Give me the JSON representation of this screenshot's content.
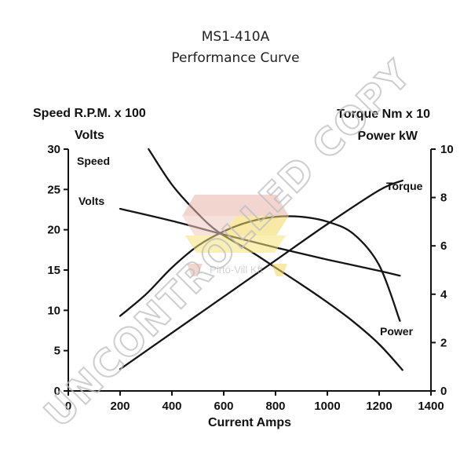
{
  "chart_data": {
    "type": "line",
    "title": "MS1-410A",
    "subtitle": "Performance Curve",
    "xlabel": "Current Amps",
    "ylabel_left_top": "Speed R.P.M. x 100",
    "ylabel_left_bottom": "Volts",
    "ylabel_right_top": "Torque Nm x 10",
    "ylabel_right_bottom": "Power kW",
    "xlim": [
      0,
      1400
    ],
    "ylim_left": [
      0,
      30
    ],
    "ylim_right": [
      0,
      10
    ],
    "x_ticks": [
      "0",
      "200",
      "400",
      "600",
      "800",
      "1000",
      "1200",
      "1400"
    ],
    "y_left_ticks": [
      "0",
      "5",
      "10",
      "15",
      "20",
      "25",
      "30"
    ],
    "y_right_ticks": [
      "0",
      "2",
      "4",
      "6",
      "8",
      "10"
    ],
    "series": [
      {
        "name": "Speed",
        "axis": "left",
        "x": [
          310,
          400,
          500,
          580,
          700,
          800,
          900,
          1000,
          1100,
          1200,
          1290
        ],
        "y": [
          30,
          25.6,
          22,
          19.7,
          17.4,
          15.3,
          13.2,
          11,
          8.6,
          5.8,
          2.6
        ]
      },
      {
        "name": "Volts",
        "axis": "left",
        "x": [
          200,
          400,
          600,
          800,
          1000,
          1200,
          1280
        ],
        "y": [
          22.6,
          21.1,
          19.4,
          17.8,
          16.3,
          14.9,
          14.3
        ]
      },
      {
        "name": "Torque",
        "axis": "right",
        "x": [
          200,
          400,
          600,
          800,
          1000,
          1200,
          1290
        ],
        "y": [
          0.9,
          2.4,
          3.9,
          5.4,
          6.9,
          8.3,
          8.7
        ]
      },
      {
        "name": "Power",
        "axis": "right",
        "x": [
          200,
          300,
          400,
          500,
          600,
          700,
          800,
          900,
          1000,
          1100,
          1200,
          1280
        ],
        "y": [
          3.1,
          4.0,
          5.1,
          6.0,
          6.6,
          7.0,
          7.2,
          7.2,
          7.0,
          6.5,
          5.2,
          2.9
        ]
      }
    ],
    "legend": "inline labels",
    "grid": false
  },
  "watermark": {
    "text": "UNCONTROLLED COPY",
    "logo_text": "Pirtó-Vill Kft"
  }
}
